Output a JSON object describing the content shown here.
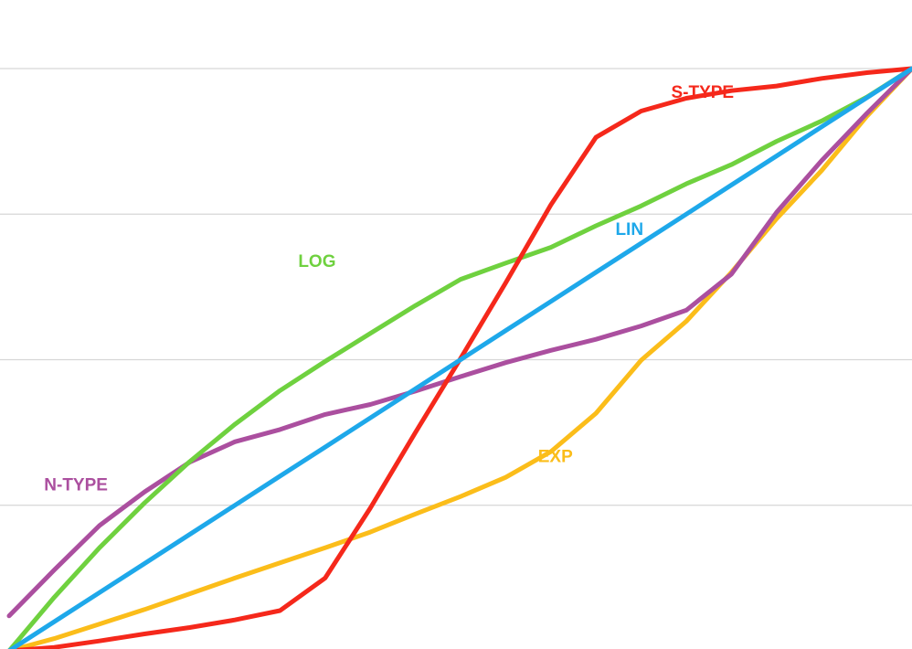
{
  "chart_data": {
    "type": "line",
    "title": "",
    "xlabel": "",
    "ylabel": "",
    "xlim": [
      0,
      100
    ],
    "ylim": [
      0,
      100
    ],
    "grid": true,
    "gridlines_y": [
      25,
      50,
      75,
      100
    ],
    "legend": "inline labels",
    "x": [
      0,
      5,
      10,
      15,
      20,
      25,
      30,
      35,
      40,
      45,
      50,
      55,
      60,
      65,
      70,
      75,
      80,
      85,
      90,
      95,
      100
    ],
    "series": [
      {
        "name": "LIN",
        "color": "#1ea8ea",
        "values": [
          0,
          5,
          10,
          15,
          20,
          25,
          30,
          35,
          40,
          45,
          50,
          55,
          60,
          65,
          70,
          75,
          80,
          85,
          90,
          95,
          100
        ]
      },
      {
        "name": "LOG",
        "color": "#6fd13f",
        "values": [
          0,
          9.2,
          17.7,
          25.4,
          32.5,
          38.9,
          44.7,
          49.7,
          54.5,
          59.3,
          63.8,
          66.6,
          69.3,
          73.0,
          76.4,
          80.2,
          83.5,
          87.5,
          91.0,
          95.1,
          100
        ]
      },
      {
        "name": "EXP",
        "color": "#fbbd1a",
        "values": [
          0,
          2.1,
          4.6,
          7.1,
          9.8,
          12.5,
          15.1,
          17.7,
          20.4,
          23.5,
          26.5,
          29.8,
          34.2,
          40.8,
          49.9,
          56.6,
          65.0,
          74.2,
          82.5,
          91.8,
          100
        ]
      },
      {
        "name": "S-TYPE",
        "color": "#f5281b",
        "values": [
          0,
          0.6,
          1.7,
          2.9,
          4.0,
          5.3,
          6.9,
          12.5,
          24.5,
          37.5,
          50.2,
          63.2,
          76.6,
          88.2,
          92.7,
          94.9,
          96.2,
          97.0,
          98.3,
          99.3,
          100
        ]
      },
      {
        "name": "N-TYPE",
        "color": "#ab4f9f",
        "values": [
          6,
          13.9,
          21.5,
          27.3,
          32.4,
          35.9,
          38.0,
          40.6,
          42.3,
          44.6,
          47.1,
          49.5,
          51.6,
          53.5,
          55.8,
          58.5,
          64.7,
          75.3,
          84.2,
          92.3,
          100
        ]
      }
    ],
    "annotations": [
      {
        "text": "S-TYPE",
        "series": "S-TYPE",
        "x": 76.8,
        "y": 95.8
      },
      {
        "text": "LOG",
        "series": "LOG",
        "x": 34.1,
        "y": 66.7
      },
      {
        "text": "LIN",
        "series": "LIN",
        "x": 68.7,
        "y": 72.2
      },
      {
        "text": "EXP",
        "series": "EXP",
        "x": 60.5,
        "y": 33.2
      },
      {
        "text": "N-TYPE",
        "series": "N-TYPE",
        "x": 7.4,
        "y": 28.3
      }
    ]
  }
}
